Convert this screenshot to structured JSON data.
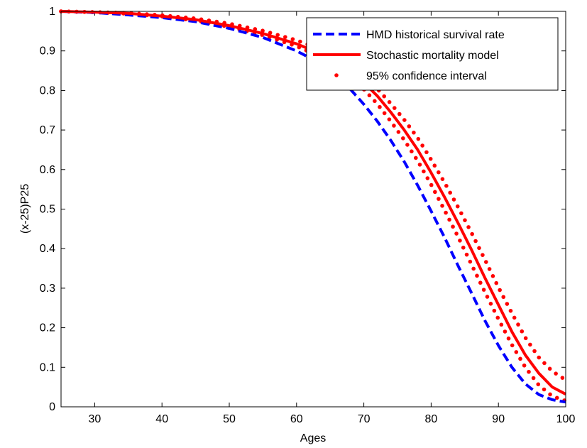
{
  "chart_data": {
    "type": "line",
    "title": "",
    "xlabel": "Ages",
    "ylabel": "(x-25)P25",
    "xlim": [
      25,
      100
    ],
    "ylim": [
      0,
      1
    ],
    "xticks": [
      30,
      40,
      50,
      60,
      70,
      80,
      90,
      100
    ],
    "yticks": [
      0,
      0.1,
      0.2,
      0.3,
      0.4,
      0.5,
      0.6,
      0.7,
      0.8,
      0.9,
      1
    ],
    "grid": false,
    "legend_position": "top-right",
    "x": [
      25,
      30,
      35,
      40,
      45,
      50,
      55,
      60,
      62,
      64,
      66,
      68,
      70,
      72,
      74,
      76,
      78,
      80,
      82,
      84,
      86,
      88,
      90,
      92,
      94,
      96,
      98,
      100
    ],
    "series": [
      {
        "name": "HMD historical survival rate",
        "style": "dashed",
        "color": "#0000ff",
        "values": [
          1.0,
          0.997,
          0.991,
          0.984,
          0.974,
          0.957,
          0.934,
          0.9,
          0.882,
          0.86,
          0.834,
          0.803,
          0.765,
          0.722,
          0.674,
          0.62,
          0.56,
          0.495,
          0.428,
          0.357,
          0.288,
          0.218,
          0.155,
          0.1,
          0.058,
          0.031,
          0.018,
          0.012
        ]
      },
      {
        "name": "Stochastic mortality model",
        "style": "solid",
        "color": "#ff0000",
        "values": [
          1.0,
          0.998,
          0.995,
          0.988,
          0.979,
          0.964,
          0.944,
          0.918,
          0.904,
          0.889,
          0.87,
          0.848,
          0.82,
          0.786,
          0.745,
          0.7,
          0.65,
          0.592,
          0.53,
          0.465,
          0.397,
          0.326,
          0.258,
          0.19,
          0.131,
          0.085,
          0.05,
          0.032
        ]
      },
      {
        "name": "95% confidence interval",
        "style": "dotted",
        "color": "#ff0000",
        "values": [
          1.0,
          0.998,
          0.996,
          0.99,
          0.982,
          0.969,
          0.951,
          0.927,
          0.914,
          0.9,
          0.883,
          0.862,
          0.836,
          0.804,
          0.767,
          0.726,
          0.68,
          0.625,
          0.567,
          0.505,
          0.44,
          0.372,
          0.302,
          0.237,
          0.175,
          0.125,
          0.09,
          0.068
        ]
      },
      {
        "name": "95% confidence interval",
        "style": "dotted",
        "color": "#ff0000",
        "legend": false,
        "values": [
          1.0,
          0.998,
          0.994,
          0.987,
          0.977,
          0.961,
          0.94,
          0.912,
          0.897,
          0.88,
          0.859,
          0.834,
          0.803,
          0.766,
          0.722,
          0.675,
          0.622,
          0.562,
          0.497,
          0.43,
          0.36,
          0.29,
          0.222,
          0.157,
          0.1,
          0.055,
          0.027,
          0.015
        ]
      }
    ]
  }
}
